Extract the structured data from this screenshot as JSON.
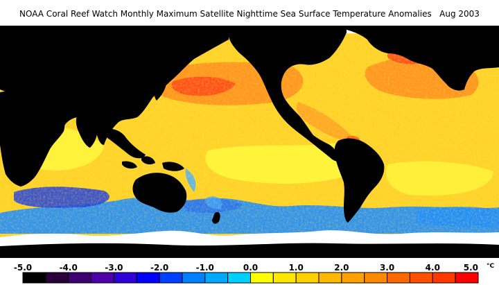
{
  "title": "NOAA Coral Reef Watch Monthly Maximum Satellite Nighttime Sea Surface Temperature Anomalies",
  "date": "Aug 2003",
  "colorbar": {
    "tick_labels": [
      "-5.0",
      "-4.0",
      "-3.0",
      "-2.0",
      "-1.0",
      "0.0",
      "1.0",
      "2.0",
      "3.0",
      "4.0",
      "5.0"
    ],
    "unit": "°C",
    "range": [
      -5.0,
      5.0
    ],
    "colors": [
      "#000000",
      "#2a0038",
      "#3c0070",
      "#4f00a8",
      "#3000d8",
      "#0000ff",
      "#0040ff",
      "#0080ff",
      "#00a8ff",
      "#00d0ff",
      "#ffff00",
      "#ffe800",
      "#ffd000",
      "#ffb800",
      "#ffa000",
      "#ff8800",
      "#ff6800",
      "#ff5000",
      "#ff3800",
      "#ff0000"
    ]
  },
  "map_colors": {
    "land": "#000000",
    "ice": "#ffffff",
    "ocean_base": "#ffd22a",
    "warm": "#ff8c1e",
    "hot": "#ff4a18",
    "cool": "#ffff30",
    "cold": "#1e8cff",
    "very_cold": "#2040e0"
  }
}
